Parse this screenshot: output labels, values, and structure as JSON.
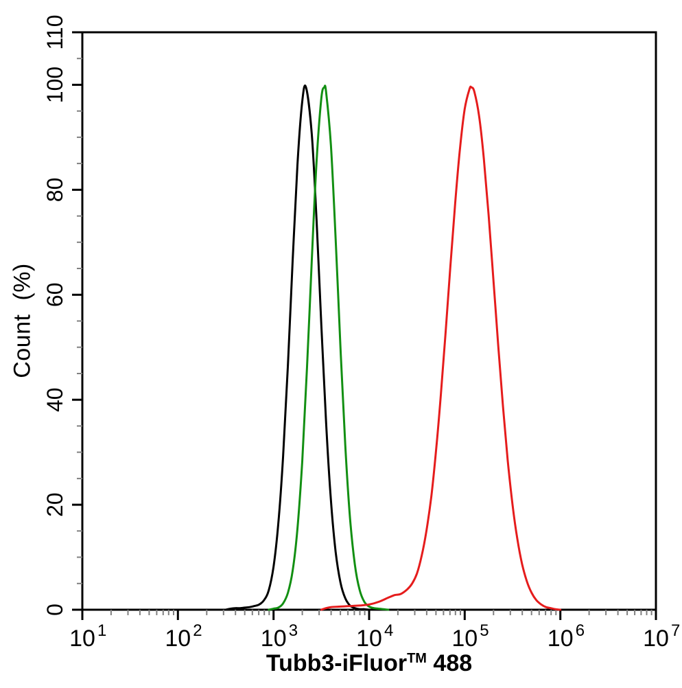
{
  "chart_data": {
    "type": "line",
    "subtype": "flow-cytometry-histogram",
    "title": "",
    "xlabel": "Tubb3-iFluor™ 488",
    "xlabel_parts": {
      "main": "Tubb3-iFluor",
      "sup": "TM",
      "suffix": " 488"
    },
    "ylabel": "Count  (%)",
    "x_scale": "log10",
    "xlim_log": [
      1,
      7
    ],
    "ylim": [
      0,
      110
    ],
    "x_tick_base": "10",
    "x_tick_exponents": [
      1,
      2,
      3,
      4,
      5,
      6,
      7
    ],
    "y_ticks": [
      0,
      20,
      40,
      60,
      80,
      100,
      110
    ],
    "y_minor_step": 5,
    "grid": false,
    "legend": "none",
    "axis_color": "#000000",
    "minor_tick_color": "#808080",
    "series": [
      {
        "name": "black-peak",
        "color": "#000000",
        "peak_log_x": 3.34,
        "peak_y": 99.5,
        "x": [
          2.5,
          2.55,
          2.6,
          2.65,
          2.7,
          2.75,
          2.8,
          2.85,
          2.9,
          2.95,
          3.0,
          3.05,
          3.1,
          3.15,
          3.2,
          3.25,
          3.3,
          3.34,
          3.4,
          3.45,
          3.5,
          3.55,
          3.6,
          3.65,
          3.7,
          3.75,
          3.8,
          3.85,
          3.9,
          3.95,
          4.0
        ],
        "y": [
          0,
          0.2,
          0.3,
          0.3,
          0.4,
          0.5,
          0.7,
          1.0,
          1.8,
          3.7,
          8.2,
          16.4,
          29.2,
          46.5,
          66.4,
          84.7,
          96.8,
          99.5,
          90.6,
          74.2,
          54.3,
          35.6,
          20.9,
          11.0,
          5.2,
          2.2,
          0.8,
          0.3,
          0.1,
          0.1,
          0
        ]
      },
      {
        "name": "green-peak",
        "color": "#128f12",
        "peak_log_x": 3.53,
        "peak_y": 99.5,
        "x": [
          2.95,
          3.0,
          3.05,
          3.1,
          3.15,
          3.2,
          3.25,
          3.3,
          3.35,
          3.4,
          3.45,
          3.5,
          3.53,
          3.55,
          3.6,
          3.65,
          3.7,
          3.75,
          3.8,
          3.85,
          3.9,
          3.95,
          4.0,
          4.05,
          4.1,
          4.15,
          4.2
        ],
        "y": [
          0,
          0.2,
          0.4,
          1.2,
          3.2,
          7.4,
          15.4,
          28.2,
          46.0,
          66.5,
          85.4,
          97.4,
          99.5,
          98.6,
          88.5,
          70.6,
          50.0,
          31.4,
          17.5,
          8.7,
          3.8,
          1.5,
          0.6,
          0.3,
          0.2,
          0.1,
          0
        ]
      },
      {
        "name": "red-peak",
        "color": "#e51c1c",
        "peak_log_x": 5.07,
        "peak_y": 99.5,
        "x": [
          3.5,
          3.55,
          3.6,
          3.7,
          3.8,
          3.9,
          4.0,
          4.1,
          4.2,
          4.27,
          4.33,
          4.4,
          4.45,
          4.5,
          4.55,
          4.6,
          4.65,
          4.7,
          4.75,
          4.8,
          4.85,
          4.9,
          4.95,
          5.0,
          5.05,
          5.07,
          5.1,
          5.15,
          5.2,
          5.25,
          5.3,
          5.35,
          5.4,
          5.45,
          5.5,
          5.55,
          5.6,
          5.65,
          5.7,
          5.75,
          5.8,
          5.85,
          5.9,
          5.95,
          6.0
        ],
        "y": [
          0,
          0.3,
          0.5,
          0.6,
          0.7,
          0.8,
          1.0,
          1.5,
          2.3,
          2.8,
          3.0,
          3.9,
          5.0,
          6.9,
          10.3,
          15.1,
          21.5,
          30.3,
          40.9,
          52.9,
          65.4,
          77.4,
          87.8,
          95.4,
          99.2,
          99.5,
          98.7,
          94.1,
          85.9,
          75.1,
          62.9,
          50.4,
          38.7,
          28.4,
          20.0,
          13.5,
          8.7,
          5.4,
          3.2,
          1.8,
          1.0,
          0.5,
          0.3,
          0.1,
          0
        ]
      }
    ]
  }
}
